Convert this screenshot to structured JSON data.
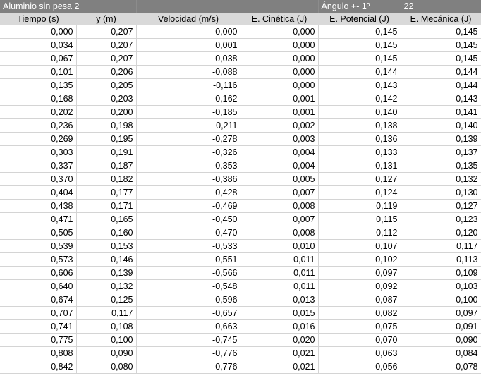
{
  "sheet": {
    "title": "Aluminio sin pesa 2",
    "angle_label": "Ángulo +- 1º",
    "angle_value": "22",
    "headers": [
      "Tiempo (s)",
      "y (m)",
      "Velocidad (m/s)",
      "E. Cinética (J)",
      "E. Potencial (J)",
      "E. Mecánica (J)"
    ],
    "rows": [
      [
        "0,000",
        "0,207",
        "0,000",
        "0,000",
        "0,145",
        "0,145"
      ],
      [
        "0,034",
        "0,207",
        "0,001",
        "0,000",
        "0,145",
        "0,145"
      ],
      [
        "0,067",
        "0,207",
        "-0,038",
        "0,000",
        "0,145",
        "0,145"
      ],
      [
        "0,101",
        "0,206",
        "-0,088",
        "0,000",
        "0,144",
        "0,144"
      ],
      [
        "0,135",
        "0,205",
        "-0,116",
        "0,000",
        "0,143",
        "0,144"
      ],
      [
        "0,168",
        "0,203",
        "-0,162",
        "0,001",
        "0,142",
        "0,143"
      ],
      [
        "0,202",
        "0,200",
        "-0,185",
        "0,001",
        "0,140",
        "0,141"
      ],
      [
        "0,236",
        "0,198",
        "-0,211",
        "0,002",
        "0,138",
        "0,140"
      ],
      [
        "0,269",
        "0,195",
        "-0,278",
        "0,003",
        "0,136",
        "0,139"
      ],
      [
        "0,303",
        "0,191",
        "-0,326",
        "0,004",
        "0,133",
        "0,137"
      ],
      [
        "0,337",
        "0,187",
        "-0,353",
        "0,004",
        "0,131",
        "0,135"
      ],
      [
        "0,370",
        "0,182",
        "-0,386",
        "0,005",
        "0,127",
        "0,132"
      ],
      [
        "0,404",
        "0,177",
        "-0,428",
        "0,007",
        "0,124",
        "0,130"
      ],
      [
        "0,438",
        "0,171",
        "-0,469",
        "0,008",
        "0,119",
        "0,127"
      ],
      [
        "0,471",
        "0,165",
        "-0,450",
        "0,007",
        "0,115",
        "0,123"
      ],
      [
        "0,505",
        "0,160",
        "-0,470",
        "0,008",
        "0,112",
        "0,120"
      ],
      [
        "0,539",
        "0,153",
        "-0,533",
        "0,010",
        "0,107",
        "0,117"
      ],
      [
        "0,573",
        "0,146",
        "-0,551",
        "0,011",
        "0,102",
        "0,113"
      ],
      [
        "0,606",
        "0,139",
        "-0,566",
        "0,011",
        "0,097",
        "0,109"
      ],
      [
        "0,640",
        "0,132",
        "-0,548",
        "0,011",
        "0,092",
        "0,103"
      ],
      [
        "0,674",
        "0,125",
        "-0,596",
        "0,013",
        "0,087",
        "0,100"
      ],
      [
        "0,707",
        "0,117",
        "-0,657",
        "0,015",
        "0,082",
        "0,097"
      ],
      [
        "0,741",
        "0,108",
        "-0,663",
        "0,016",
        "0,075",
        "0,091"
      ],
      [
        "0,775",
        "0,100",
        "-0,745",
        "0,020",
        "0,070",
        "0,090"
      ],
      [
        "0,808",
        "0,090",
        "-0,776",
        "0,021",
        "0,063",
        "0,084"
      ],
      [
        "0,842",
        "0,080",
        "-0,776",
        "0,021",
        "0,056",
        "0,078"
      ]
    ]
  }
}
